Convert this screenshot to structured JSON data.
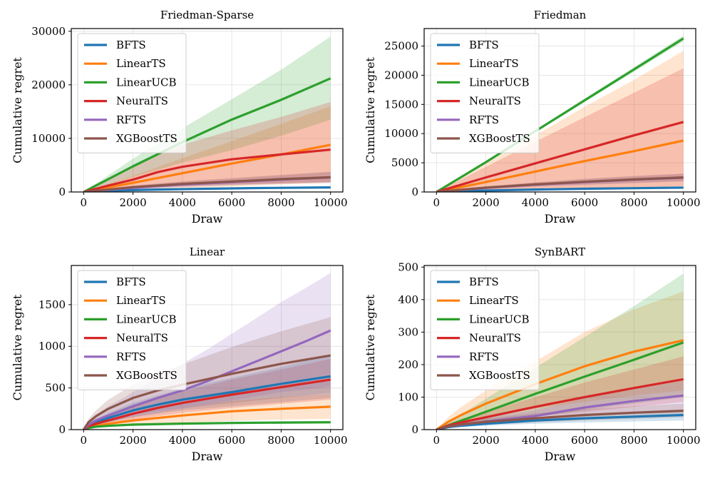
{
  "colors": {
    "BFTS": "#1f77b4",
    "LinearTS": "#ff7f0e",
    "LinearUCB": "#2ca02c",
    "NeuralTS": "#d62728",
    "RFTS": "#9467bd",
    "XGBoostTS": "#8c564b"
  },
  "chart_data": [
    {
      "type": "line",
      "title": "Friedman-Sparse",
      "xlabel": "Draw",
      "ylabel": "Cumulative regret",
      "xlim": [
        -500,
        10500
      ],
      "ylim": [
        0,
        30500
      ],
      "xticks": [
        0,
        2000,
        4000,
        6000,
        8000,
        10000
      ],
      "yticks": [
        0,
        10000,
        20000,
        30000
      ],
      "legend": "upper-left",
      "series": [
        {
          "name": "BFTS",
          "x": [
            0,
            1000,
            3000,
            5000,
            7000,
            10000
          ],
          "y": [
            0,
            250,
            450,
            600,
            730,
            850
          ],
          "lo": [
            0,
            200,
            350,
            480,
            580,
            700
          ],
          "hi": [
            0,
            330,
            560,
            750,
            900,
            1050
          ]
        },
        {
          "name": "LinearTS",
          "x": [
            0,
            2000,
            4000,
            6000,
            8000,
            10000
          ],
          "y": [
            0,
            1700,
            3500,
            5300,
            7000,
            8800
          ],
          "lo": [
            0,
            300,
            700,
            1000,
            1400,
            1700
          ],
          "hi": [
            0,
            3000,
            6300,
            9500,
            12700,
            16000
          ]
        },
        {
          "name": "LinearUCB",
          "x": [
            0,
            2000,
            4000,
            6000,
            8000,
            10000
          ],
          "y": [
            0,
            4800,
            9300,
            13500,
            17200,
            21200
          ],
          "lo": [
            0,
            2800,
            5500,
            7800,
            10500,
            13500
          ],
          "hi": [
            0,
            6200,
            11900,
            17300,
            22800,
            29000
          ]
        },
        {
          "name": "NeuralTS",
          "x": [
            0,
            1000,
            2000,
            3000,
            4000,
            6000,
            8000,
            10000
          ],
          "y": [
            0,
            1200,
            2300,
            3700,
            4700,
            6100,
            7000,
            7900
          ],
          "lo": [
            0,
            300,
            600,
            900,
            1100,
            1400,
            1600,
            1800
          ],
          "hi": [
            0,
            2500,
            4800,
            7000,
            8800,
            11500,
            14000,
            16800
          ]
        },
        {
          "name": "RFTS",
          "x": [
            0,
            2000,
            4000,
            6000,
            8000,
            10000
          ],
          "y": [
            0,
            800,
            1400,
            1850,
            2300,
            2700
          ],
          "lo": [
            0,
            500,
            900,
            1200,
            1500,
            1700
          ],
          "hi": [
            0,
            1100,
            1900,
            2500,
            3100,
            3700
          ]
        },
        {
          "name": "XGBoostTS",
          "x": [
            0,
            2000,
            4000,
            6000,
            8000,
            10000
          ],
          "y": [
            0,
            900,
            1500,
            1950,
            2400,
            2750
          ],
          "lo": [
            0,
            600,
            1000,
            1300,
            1600,
            1900
          ],
          "hi": [
            0,
            1200,
            2000,
            2600,
            3200,
            3800
          ]
        }
      ]
    },
    {
      "type": "line",
      "title": "Friedman",
      "xlabel": "Draw",
      "ylabel": "Cumulative regret",
      "xlim": [
        -500,
        10500
      ],
      "ylim": [
        0,
        28000
      ],
      "xticks": [
        0,
        2000,
        4000,
        6000,
        8000,
        10000
      ],
      "yticks": [
        0,
        5000,
        10000,
        15000,
        20000,
        25000
      ],
      "legend": "upper-left",
      "series": [
        {
          "name": "BFTS",
          "x": [
            0,
            2000,
            4000,
            6000,
            8000,
            10000
          ],
          "y": [
            0,
            250,
            420,
            550,
            650,
            750
          ],
          "lo": [
            0,
            200,
            330,
            430,
            510,
            600
          ],
          "hi": [
            0,
            320,
            520,
            680,
            800,
            920
          ]
        },
        {
          "name": "LinearTS",
          "x": [
            0,
            2000,
            4000,
            6000,
            8000,
            10000
          ],
          "y": [
            0,
            1700,
            3500,
            5300,
            7000,
            8800
          ],
          "lo": [
            0,
            200,
            400,
            600,
            800,
            1000
          ],
          "hi": [
            0,
            4900,
            9700,
            14600,
            19200,
            24200
          ]
        },
        {
          "name": "LinearUCB",
          "x": [
            0,
            2000,
            4000,
            6000,
            8000,
            10000
          ],
          "y": [
            0,
            5100,
            10400,
            15700,
            21000,
            26300
          ],
          "lo": [
            0,
            5000,
            10200,
            15400,
            20600,
            25800
          ],
          "hi": [
            0,
            5200,
            10600,
            16000,
            21400,
            26800
          ]
        },
        {
          "name": "NeuralTS",
          "x": [
            0,
            2000,
            4000,
            6000,
            8000,
            10000
          ],
          "y": [
            0,
            2500,
            4900,
            7300,
            9700,
            12000
          ],
          "lo": [
            0,
            200,
            400,
            600,
            800,
            1000
          ],
          "hi": [
            0,
            4300,
            8600,
            12800,
            17000,
            21200
          ]
        },
        {
          "name": "RFTS",
          "x": [
            0,
            2000,
            4000,
            6000,
            8000,
            10000
          ],
          "y": [
            0,
            700,
            1250,
            1700,
            2100,
            2450
          ],
          "lo": [
            0,
            500,
            900,
            1200,
            1500,
            1800
          ],
          "hi": [
            0,
            900,
            1600,
            2200,
            2700,
            3100
          ]
        },
        {
          "name": "XGBoostTS",
          "x": [
            0,
            2000,
            4000,
            6000,
            8000,
            10000
          ],
          "y": [
            0,
            750,
            1300,
            1750,
            2150,
            2500
          ],
          "lo": [
            0,
            550,
            950,
            1250,
            1550,
            1850
          ],
          "hi": [
            0,
            950,
            1650,
            2250,
            2750,
            3150
          ]
        }
      ]
    },
    {
      "type": "line",
      "title": "Linear",
      "xlabel": "Draw",
      "ylabel": "Cumulative regret",
      "xlim": [
        -500,
        10500
      ],
      "ylim": [
        0,
        1970
      ],
      "xticks": [
        0,
        2000,
        4000,
        6000,
        8000,
        10000
      ],
      "yticks": [
        0,
        500,
        1000,
        1500
      ],
      "legend": "upper-left",
      "series": [
        {
          "name": "BFTS",
          "x": [
            0,
            200,
            500,
            1000,
            2000,
            3000,
            4000,
            6000,
            8000,
            10000
          ],
          "y": [
            0,
            50,
            90,
            140,
            230,
            300,
            360,
            450,
            550,
            640
          ],
          "lo": [
            0,
            30,
            60,
            90,
            150,
            190,
            230,
            280,
            330,
            380
          ],
          "hi": [
            0,
            80,
            130,
            200,
            320,
            410,
            490,
            620,
            750,
            900
          ]
        },
        {
          "name": "LinearTS",
          "x": [
            0,
            200,
            500,
            1000,
            2000,
            4000,
            6000,
            8000,
            10000
          ],
          "y": [
            0,
            25,
            45,
            70,
            110,
            170,
            220,
            250,
            275
          ],
          "lo": [
            0,
            15,
            25,
            40,
            60,
            85,
            105,
            120,
            130
          ],
          "hi": [
            0,
            40,
            70,
            110,
            170,
            260,
            340,
            390,
            430
          ]
        },
        {
          "name": "LinearUCB",
          "x": [
            0,
            200,
            500,
            1000,
            2000,
            4000,
            6000,
            8000,
            10000
          ],
          "y": [
            0,
            20,
            35,
            45,
            60,
            72,
            80,
            85,
            88
          ],
          "lo": [
            0,
            15,
            28,
            37,
            50,
            60,
            66,
            70,
            72
          ],
          "hi": [
            0,
            25,
            42,
            55,
            72,
            86,
            95,
            100,
            105
          ]
        },
        {
          "name": "NeuralTS",
          "x": [
            0,
            200,
            500,
            1000,
            2000,
            3000,
            4000,
            6000,
            8000,
            10000
          ],
          "y": [
            0,
            40,
            70,
            110,
            190,
            260,
            320,
            420,
            510,
            600
          ],
          "lo": [
            0,
            25,
            45,
            70,
            120,
            160,
            200,
            260,
            310,
            360
          ],
          "hi": [
            0,
            60,
            100,
            160,
            280,
            380,
            460,
            600,
            720,
            850
          ]
        },
        {
          "name": "RFTS",
          "x": [
            0,
            200,
            500,
            1000,
            2000,
            3000,
            4000,
            5000,
            6000,
            7000,
            8000,
            9000,
            10000
          ],
          "y": [
            0,
            60,
            110,
            170,
            280,
            380,
            470,
            580,
            700,
            820,
            940,
            1060,
            1190
          ],
          "lo": [
            0,
            30,
            60,
            90,
            150,
            200,
            250,
            300,
            350,
            400,
            450,
            480,
            520
          ],
          "hi": [
            0,
            100,
            180,
            280,
            450,
            620,
            790,
            960,
            1150,
            1340,
            1530,
            1700,
            1880
          ]
        },
        {
          "name": "XGBoostTS",
          "x": [
            0,
            200,
            500,
            1000,
            2000,
            3000,
            4000,
            6000,
            8000,
            10000
          ],
          "y": [
            0,
            90,
            160,
            250,
            380,
            470,
            540,
            670,
            790,
            890
          ],
          "lo": [
            0,
            45,
            80,
            120,
            180,
            220,
            260,
            320,
            380,
            440
          ],
          "hi": [
            0,
            130,
            230,
            360,
            540,
            670,
            780,
            990,
            1180,
            1350
          ]
        }
      ]
    },
    {
      "type": "line",
      "title": "SynBART",
      "xlabel": "Draw",
      "ylabel": "Cumulative regret",
      "xlim": [
        -500,
        10500
      ],
      "ylim": [
        0,
        505
      ],
      "xticks": [
        0,
        2000,
        4000,
        6000,
        8000,
        10000
      ],
      "yticks": [
        0,
        100,
        200,
        300,
        400,
        500
      ],
      "legend": "upper-left",
      "series": [
        {
          "name": "BFTS",
          "x": [
            0,
            500,
            1000,
            2000,
            4000,
            6000,
            8000,
            10000
          ],
          "y": [
            0,
            8,
            12,
            18,
            28,
            35,
            40,
            45
          ],
          "lo": [
            0,
            5,
            8,
            12,
            18,
            22,
            25,
            28
          ],
          "hi": [
            0,
            11,
            16,
            24,
            38,
            48,
            56,
            62
          ]
        },
        {
          "name": "LinearTS",
          "x": [
            0,
            500,
            1000,
            2000,
            4000,
            6000,
            8000,
            10000
          ],
          "y": [
            0,
            25,
            45,
            80,
            140,
            195,
            240,
            275
          ],
          "lo": [
            0,
            15,
            25,
            40,
            65,
            85,
            105,
            120
          ],
          "hi": [
            0,
            40,
            70,
            120,
            210,
            300,
            370,
            425
          ]
        },
        {
          "name": "LinearUCB",
          "x": [
            0,
            2000,
            4000,
            6000,
            8000,
            10000
          ],
          "y": [
            0,
            55,
            110,
            163,
            215,
            268
          ],
          "lo": [
            0,
            20,
            40,
            60,
            80,
            100
          ],
          "hi": [
            0,
            95,
            190,
            285,
            380,
            480
          ]
        },
        {
          "name": "NeuralTS",
          "x": [
            0,
            500,
            1000,
            2000,
            4000,
            6000,
            8000,
            10000
          ],
          "y": [
            0,
            13,
            22,
            38,
            70,
            100,
            128,
            155
          ],
          "lo": [
            0,
            8,
            14,
            24,
            40,
            55,
            70,
            85
          ],
          "hi": [
            0,
            20,
            32,
            55,
            100,
            145,
            185,
            225
          ]
        },
        {
          "name": "RFTS",
          "x": [
            0,
            500,
            1000,
            2000,
            4000,
            5000,
            6000,
            8000,
            10000
          ],
          "y": [
            0,
            10,
            15,
            25,
            42,
            55,
            68,
            88,
            105
          ],
          "lo": [
            0,
            6,
            10,
            16,
            27,
            34,
            40,
            50,
            60
          ],
          "hi": [
            0,
            14,
            22,
            36,
            60,
            78,
            96,
            125,
            150
          ]
        },
        {
          "name": "XGBoostTS",
          "x": [
            0,
            500,
            1000,
            2000,
            4000,
            6000,
            8000,
            10000
          ],
          "y": [
            0,
            10,
            16,
            24,
            35,
            45,
            52,
            58
          ],
          "lo": [
            0,
            6,
            10,
            15,
            22,
            28,
            33,
            38
          ],
          "hi": [
            0,
            14,
            22,
            34,
            50,
            63,
            72,
            80
          ]
        }
      ]
    }
  ]
}
